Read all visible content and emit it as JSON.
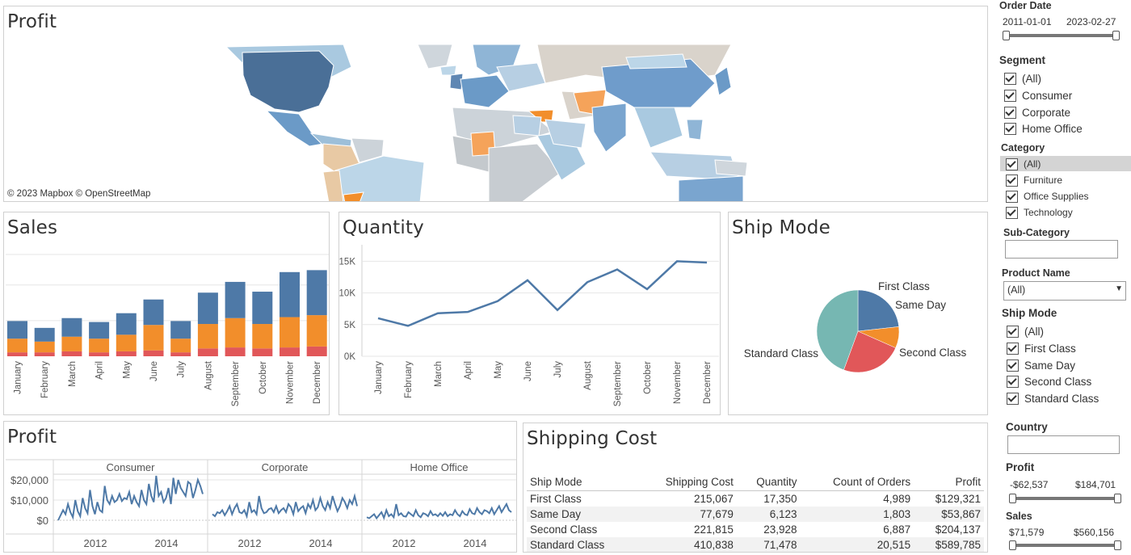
{
  "colors": {
    "blue": "#4e79a7",
    "orange": "#f28e2b",
    "red": "#e15759",
    "teal": "#76b7b2",
    "grid": "#e6e6e6"
  },
  "map": {
    "title": "Profit",
    "attribution": "© 2023 Mapbox © OpenStreetMap"
  },
  "sales": {
    "title": "Sales",
    "chart_data": {
      "type": "bar",
      "categories": [
        "January",
        "February",
        "March",
        "April",
        "May",
        "June",
        "July",
        "August",
        "September",
        "October",
        "November",
        "December"
      ],
      "series": [
        {
          "values": [
            18000,
            14000,
            19000,
            17000,
            22000,
            26000,
            18000,
            32000,
            37000,
            33000,
            46000,
            46000
          ]
        },
        {
          "values": [
            14000,
            11000,
            15000,
            14000,
            17000,
            26000,
            14000,
            25000,
            30000,
            25000,
            31000,
            32000
          ]
        },
        {
          "values": [
            4000,
            4000,
            5000,
            4000,
            5000,
            6000,
            4000,
            8000,
            9000,
            8000,
            9000,
            10000
          ]
        }
      ],
      "ylim": [
        0,
        104000
      ],
      "grid": true
    }
  },
  "quantity": {
    "title": "Quantity",
    "chart_data": {
      "type": "line",
      "categories": [
        "January",
        "February",
        "March",
        "April",
        "May",
        "June",
        "July",
        "August",
        "September",
        "October",
        "November",
        "December"
      ],
      "values": [
        6000,
        4800,
        6800,
        7000,
        8700,
        12000,
        7300,
        11700,
        13700,
        10600,
        15000,
        14800
      ],
      "yticks": [
        "0K",
        "5K",
        "10K",
        "15K"
      ],
      "ytick_values": [
        0,
        5000,
        10000,
        15000
      ],
      "ylim": [
        0,
        16200
      ]
    }
  },
  "ship": {
    "title": "Ship Mode",
    "chart_data": {
      "type": "pie",
      "labels": [
        "First Class",
        "Same Day",
        "Second Class",
        "Standard Class"
      ],
      "values": [
        215067,
        77679,
        221815,
        410838
      ]
    }
  },
  "profit": {
    "title": "Profit",
    "panels": [
      "Consumer",
      "Corporate",
      "Home Office"
    ],
    "yticks": [
      "$20,000",
      "$10,000",
      "$0"
    ],
    "xticks": [
      "2012",
      "2014"
    ],
    "chart_data": {
      "type": "line",
      "ylim": [
        -1000,
        24000
      ],
      "series": [
        {
          "name": "Consumer",
          "values": [
            0,
            2500,
            5000,
            3000,
            8000,
            4000,
            1500,
            10000,
            4500,
            2000,
            11000,
            6000,
            3500,
            15000,
            7000,
            3000,
            9000,
            5000,
            4000,
            17000,
            10000,
            8000,
            12000,
            9000,
            10000,
            13000,
            9500,
            11000,
            10500,
            14000,
            8000,
            12000,
            9000,
            7000,
            15000,
            10000,
            8000,
            18000,
            12000,
            9000,
            22000,
            12000,
            14000,
            9000,
            11000,
            16000,
            8000,
            21000,
            13000,
            20000,
            16000,
            14000,
            12000,
            19000,
            18000,
            11000,
            15000,
            20000,
            17000,
            13000
          ]
        },
        {
          "name": "Corporate",
          "values": [
            3000,
            2000,
            4000,
            3500,
            5000,
            2500,
            4500,
            7000,
            3000,
            6000,
            8000,
            4000,
            3500,
            5000,
            2000,
            9000,
            4000,
            5000,
            3000,
            12000,
            6000,
            3500,
            4000,
            5500,
            6000,
            4000,
            7000,
            3500,
            5000,
            6000,
            4000,
            8000,
            6500,
            3000,
            9000,
            4500,
            6000,
            7000,
            3500,
            8000,
            6000,
            10000,
            5000,
            6500,
            11000,
            7000,
            5000,
            9000,
            6000,
            12000,
            8000,
            4500,
            7000,
            11000,
            9000,
            6000,
            10000,
            8000,
            12000,
            7000
          ]
        },
        {
          "name": "Home Office",
          "values": [
            1500,
            1000,
            2000,
            3000,
            1000,
            2500,
            4000,
            1200,
            5000,
            2000,
            3000,
            1500,
            8000,
            2500,
            3500,
            2000,
            1800,
            4000,
            3000,
            2000,
            5000,
            2500,
            1500,
            3500,
            3000,
            2000,
            4500,
            2500,
            3000,
            2000,
            3500,
            2200,
            4000,
            2000,
            3000,
            2500,
            5000,
            3000,
            2000,
            4500,
            3000,
            2500,
            5500,
            3500,
            3000,
            6000,
            4000,
            3000,
            5000,
            4500,
            3500,
            6000,
            3000,
            5000,
            7000,
            4000,
            6000,
            8000,
            5000,
            4000
          ]
        }
      ]
    }
  },
  "shipping": {
    "title": "Shipping Cost",
    "columns": [
      "Ship Mode",
      "Shipping Cost",
      "Quantity",
      "Count of Orders",
      "Profit"
    ],
    "rows": [
      [
        "First Class",
        "215,067",
        "17,350",
        "4,989",
        "$129,321"
      ],
      [
        "Same Day",
        "77,679",
        "6,123",
        "1,803",
        "$53,867"
      ],
      [
        "Second Class",
        "221,815",
        "23,928",
        "6,887",
        "$204,137"
      ],
      [
        "Standard Class",
        "410,838",
        "71,478",
        "20,515",
        "$589,785"
      ]
    ]
  },
  "filters": {
    "order_date": {
      "label": "Order Date",
      "from": "2011-01-01",
      "to": "2023-02-27"
    },
    "segment": {
      "label": "Segment",
      "items": [
        "(All)",
        "Consumer",
        "Corporate",
        "Home Office"
      ]
    },
    "category": {
      "label": "Category",
      "items": [
        "(All)",
        "Furniture",
        "Office Supplies",
        "Technology"
      ]
    },
    "subcategory": {
      "label": "Sub-Category"
    },
    "product": {
      "label": "Product Name",
      "value": "(All)"
    },
    "shipmode": {
      "label": "Ship Mode",
      "items": [
        "(All)",
        "First Class",
        "Same Day",
        "Second Class",
        "Standard Class"
      ]
    },
    "country": {
      "label": "Country"
    },
    "profit": {
      "label": "Profit",
      "min": "-$62,537",
      "max": "$184,701"
    },
    "sales": {
      "label": "Sales",
      "min": "$71,579",
      "max": "$560,156"
    }
  }
}
